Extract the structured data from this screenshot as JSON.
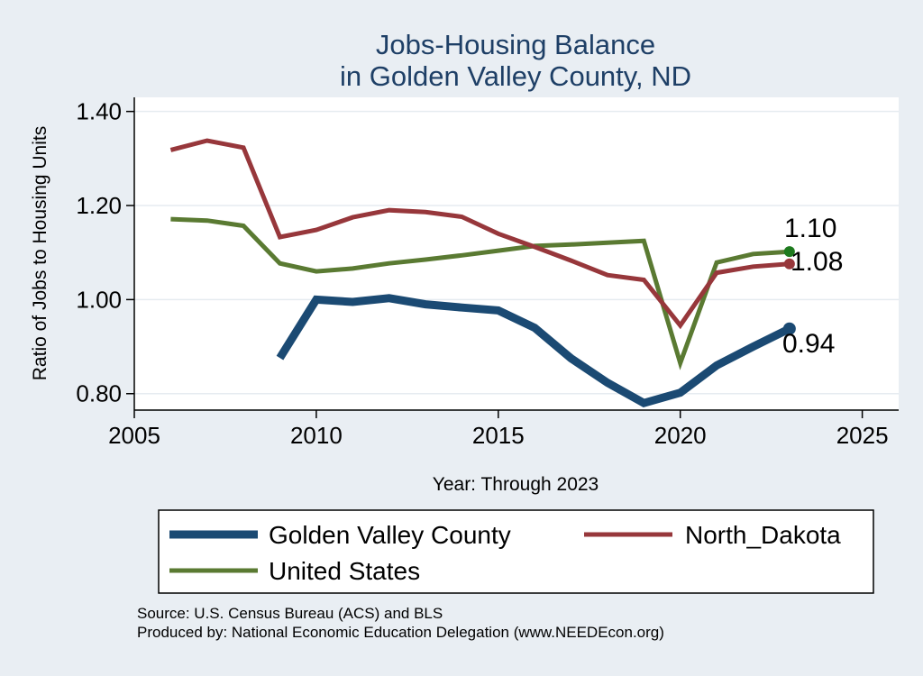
{
  "chart_data": {
    "type": "line",
    "title_lines": [
      "Jobs-Housing Balance",
      "in Golden Valley County, ND"
    ],
    "xlabel": "Year: Through 2023",
    "ylabel": "Ratio of Jobs to Housing Units",
    "xlim": [
      2005,
      2026
    ],
    "ylim": [
      0.765,
      1.43
    ],
    "xticks": [
      2005,
      2010,
      2015,
      2020,
      2025
    ],
    "xtick_labels": [
      "2005",
      "2010",
      "2015",
      "2020",
      "2025"
    ],
    "yticks": [
      0.8,
      1.0,
      1.2,
      1.4
    ],
    "ytick_labels": [
      "0.80",
      "1.00",
      "1.20",
      "1.40"
    ],
    "grid": "horizontal",
    "series": [
      {
        "name": "Golden Valley County",
        "color": "#1b4a73",
        "x": [
          2009,
          2010,
          2011,
          2012,
          2013,
          2014,
          2015,
          2016,
          2017,
          2018,
          2019,
          2020,
          2021,
          2022,
          2023
        ],
        "values": [
          0.876,
          1.0,
          0.995,
          1.003,
          0.99,
          0.983,
          0.977,
          0.94,
          0.875,
          0.823,
          0.78,
          0.802,
          0.86,
          0.9,
          0.938
        ],
        "end_label": "0.94"
      },
      {
        "name": "North_Dakota",
        "color": "#97373b",
        "x": [
          2006,
          2007,
          2008,
          2009,
          2010,
          2011,
          2012,
          2013,
          2014,
          2015,
          2016,
          2017,
          2018,
          2019,
          2020,
          2021,
          2022,
          2023
        ],
        "values": [
          1.318,
          1.338,
          1.323,
          1.133,
          1.148,
          1.175,
          1.19,
          1.186,
          1.176,
          1.14,
          1.112,
          1.083,
          1.052,
          1.042,
          0.945,
          1.057,
          1.07,
          1.076
        ],
        "end_label": "1.08"
      },
      {
        "name": "United States",
        "color": "#5a7a32",
        "x": [
          2006,
          2007,
          2008,
          2009,
          2010,
          2011,
          2012,
          2013,
          2014,
          2015,
          2016,
          2017,
          2018,
          2019,
          2020,
          2021,
          2022,
          2023
        ],
        "values": [
          1.171,
          1.168,
          1.157,
          1.077,
          1.06,
          1.066,
          1.077,
          1.085,
          1.094,
          1.104,
          1.114,
          1.117,
          1.121,
          1.125,
          0.865,
          1.079,
          1.097,
          1.102
        ],
        "end_label": "1.10"
      }
    ],
    "end_marker_color_us": "#1e7a1e",
    "legend_position": "bottom"
  },
  "footer": {
    "source": "Source: U.S. Census Bureau (ACS) and BLS",
    "produced_by": "Produced by: National Economic Education Delegation (www.NEEDEcon.org)"
  }
}
